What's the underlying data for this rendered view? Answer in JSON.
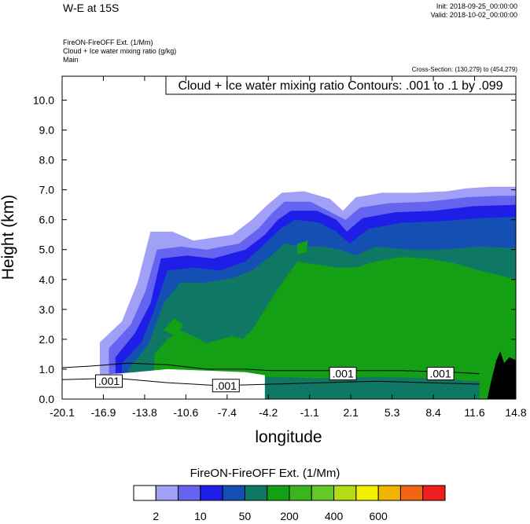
{
  "header": {
    "title": "W-E at 15S",
    "init": "Init: 2018-09-25_00:00:00",
    "valid": "Valid: 2018-10-02_00:00:00",
    "field_line1": "FireON-FireOFF Ext.   (1/Mm)",
    "field_line2": "Cloud + Ice water mixing ratio   (g/kg)",
    "field_line3": "Main",
    "cross_section": "Cross-Section: (130,279) to (454,279)"
  },
  "contour_box": "Cloud + Ice water mixing ratio Contours: .001 to .1 by .099",
  "contour_labels": [
    ".001",
    ".001",
    ".001",
    ".001"
  ],
  "chart_data": {
    "type": "heatmap",
    "xlabel": "longitude",
    "ylabel": "Height (km)",
    "x_ticks": [
      "-20.1",
      "-16.9",
      "-13.8",
      "-10.6",
      "-7.4",
      "-4.2",
      "-1.1",
      "2.1",
      "5.3",
      "8.4",
      "11.6",
      "14.8"
    ],
    "y_ticks": [
      "0.0",
      "1.0",
      "2.0",
      "3.0",
      "4.0",
      "5.0",
      "6.0",
      "7.0",
      "8.0",
      "9.0",
      "10.0"
    ],
    "xlim": [
      -20.1,
      14.8
    ],
    "ylim": [
      0,
      10.8
    ],
    "colorbar": {
      "title": "FireON-FireOFF Ext.  (1/Mm)",
      "colors": [
        "#ffffff",
        "#a0a0f6",
        "#6464f0",
        "#1e1ee8",
        "#1450b4",
        "#0f7864",
        "#14a014",
        "#3cb41e",
        "#64c828",
        "#b4dc14",
        "#f0f000",
        "#f0b400",
        "#f06414",
        "#f01e1e"
      ],
      "labels": [
        "2",
        "10",
        "50",
        "200",
        "400",
        "600"
      ],
      "label_boundaries": [
        1,
        3,
        5,
        7,
        9,
        11
      ]
    },
    "bands": [
      {
        "level": 1,
        "top": [
          [
            -17.2,
            1.9
          ],
          [
            -15.5,
            2.6
          ],
          [
            -14.3,
            3.9
          ],
          [
            -13.3,
            5.6
          ],
          [
            -11.6,
            5.6
          ],
          [
            -10.0,
            5.3
          ],
          [
            -8.5,
            5.4
          ],
          [
            -7.0,
            5.5
          ],
          [
            -5.5,
            6.0
          ],
          [
            -4.3,
            6.5
          ],
          [
            -3.2,
            6.9
          ],
          [
            -1.5,
            6.95
          ],
          [
            0.5,
            6.7
          ],
          [
            1.5,
            6.3
          ],
          [
            2.5,
            6.75
          ],
          [
            4.5,
            6.9
          ],
          [
            7.0,
            6.9
          ],
          [
            9.5,
            6.95
          ],
          [
            11.0,
            7.05
          ],
          [
            12.8,
            7.1
          ],
          [
            14.8,
            7.1
          ]
        ]
      },
      {
        "level": 2,
        "top": [
          [
            -16.5,
            1.7
          ],
          [
            -14.8,
            2.5
          ],
          [
            -13.7,
            3.6
          ],
          [
            -12.8,
            5.0
          ],
          [
            -11.0,
            5.1
          ],
          [
            -9.0,
            5.0
          ],
          [
            -6.5,
            5.2
          ],
          [
            -5.0,
            5.7
          ],
          [
            -4.0,
            6.2
          ],
          [
            -3.0,
            6.6
          ],
          [
            -1.0,
            6.6
          ],
          [
            0.8,
            6.2
          ],
          [
            1.7,
            6.0
          ],
          [
            2.8,
            6.4
          ],
          [
            5.0,
            6.55
          ],
          [
            8.0,
            6.6
          ],
          [
            11.0,
            6.75
          ],
          [
            13.5,
            6.8
          ],
          [
            14.8,
            6.8
          ]
        ]
      },
      {
        "level": 3,
        "top": [
          [
            -16.0,
            1.4
          ],
          [
            -14.5,
            2.2
          ],
          [
            -13.3,
            3.2
          ],
          [
            -12.5,
            4.7
          ],
          [
            -10.5,
            4.8
          ],
          [
            -8.5,
            4.7
          ],
          [
            -6.0,
            5.0
          ],
          [
            -4.5,
            5.5
          ],
          [
            -3.5,
            6.0
          ],
          [
            -2.5,
            6.3
          ],
          [
            -0.5,
            6.3
          ],
          [
            1.0,
            6.0
          ],
          [
            1.8,
            5.6
          ],
          [
            3.0,
            6.05
          ],
          [
            5.5,
            6.25
          ],
          [
            8.5,
            6.3
          ],
          [
            11.5,
            6.45
          ],
          [
            14.8,
            6.5
          ]
        ]
      },
      {
        "level": 4,
        "top": [
          [
            -15.5,
            1.2
          ],
          [
            -14.0,
            1.9
          ],
          [
            -13.0,
            3.0
          ],
          [
            -12.0,
            4.3
          ],
          [
            -10.0,
            4.4
          ],
          [
            -8.0,
            4.3
          ],
          [
            -6.0,
            4.6
          ],
          [
            -4.5,
            5.2
          ],
          [
            -3.3,
            5.7
          ],
          [
            -2.2,
            6.0
          ],
          [
            -0.3,
            5.9
          ],
          [
            1.0,
            5.6
          ],
          [
            2.0,
            5.2
          ],
          [
            3.5,
            5.7
          ],
          [
            6.0,
            5.9
          ],
          [
            9.0,
            5.95
          ],
          [
            12.0,
            6.05
          ],
          [
            14.8,
            6.1
          ]
        ]
      },
      {
        "level": 5,
        "top": [
          [
            -15.0,
            1.0
          ],
          [
            -13.5,
            1.8
          ],
          [
            -12.3,
            3.2
          ],
          [
            -11.0,
            3.9
          ],
          [
            -9.0,
            3.9
          ],
          [
            -7.0,
            4.05
          ],
          [
            -5.5,
            4.3
          ],
          [
            -4.0,
            4.8
          ],
          [
            -3.0,
            5.2
          ],
          [
            -1.5,
            5.1
          ],
          [
            0.0,
            5.1
          ],
          [
            1.3,
            5.0
          ],
          [
            2.5,
            4.8
          ],
          [
            4.0,
            5.1
          ],
          [
            6.5,
            5.0
          ],
          [
            9.0,
            5.0
          ],
          [
            12.0,
            5.1
          ],
          [
            14.8,
            5.05
          ]
        ]
      },
      {
        "level": 6,
        "top": [
          [
            -13.0,
            1.5
          ],
          [
            -12.0,
            2.0
          ],
          [
            -11.0,
            2.3
          ],
          [
            -9.5,
            2.0
          ],
          [
            -8.5,
            1.7
          ],
          [
            -7.5,
            1.6
          ],
          [
            -6.5,
            1.9
          ],
          [
            -5.5,
            2.3
          ],
          [
            -4.5,
            3.0
          ],
          [
            -3.8,
            3.5
          ],
          [
            -3.0,
            4.0
          ],
          [
            -2.0,
            4.6
          ],
          [
            -0.5,
            4.5
          ],
          [
            1.0,
            4.4
          ],
          [
            2.5,
            4.4
          ],
          [
            4.0,
            4.6
          ],
          [
            6.0,
            4.75
          ],
          [
            8.0,
            4.7
          ],
          [
            10.0,
            4.55
          ],
          [
            12.0,
            4.3
          ],
          [
            14.0,
            4.1
          ],
          [
            14.8,
            4.0
          ]
        ]
      }
    ]
  }
}
